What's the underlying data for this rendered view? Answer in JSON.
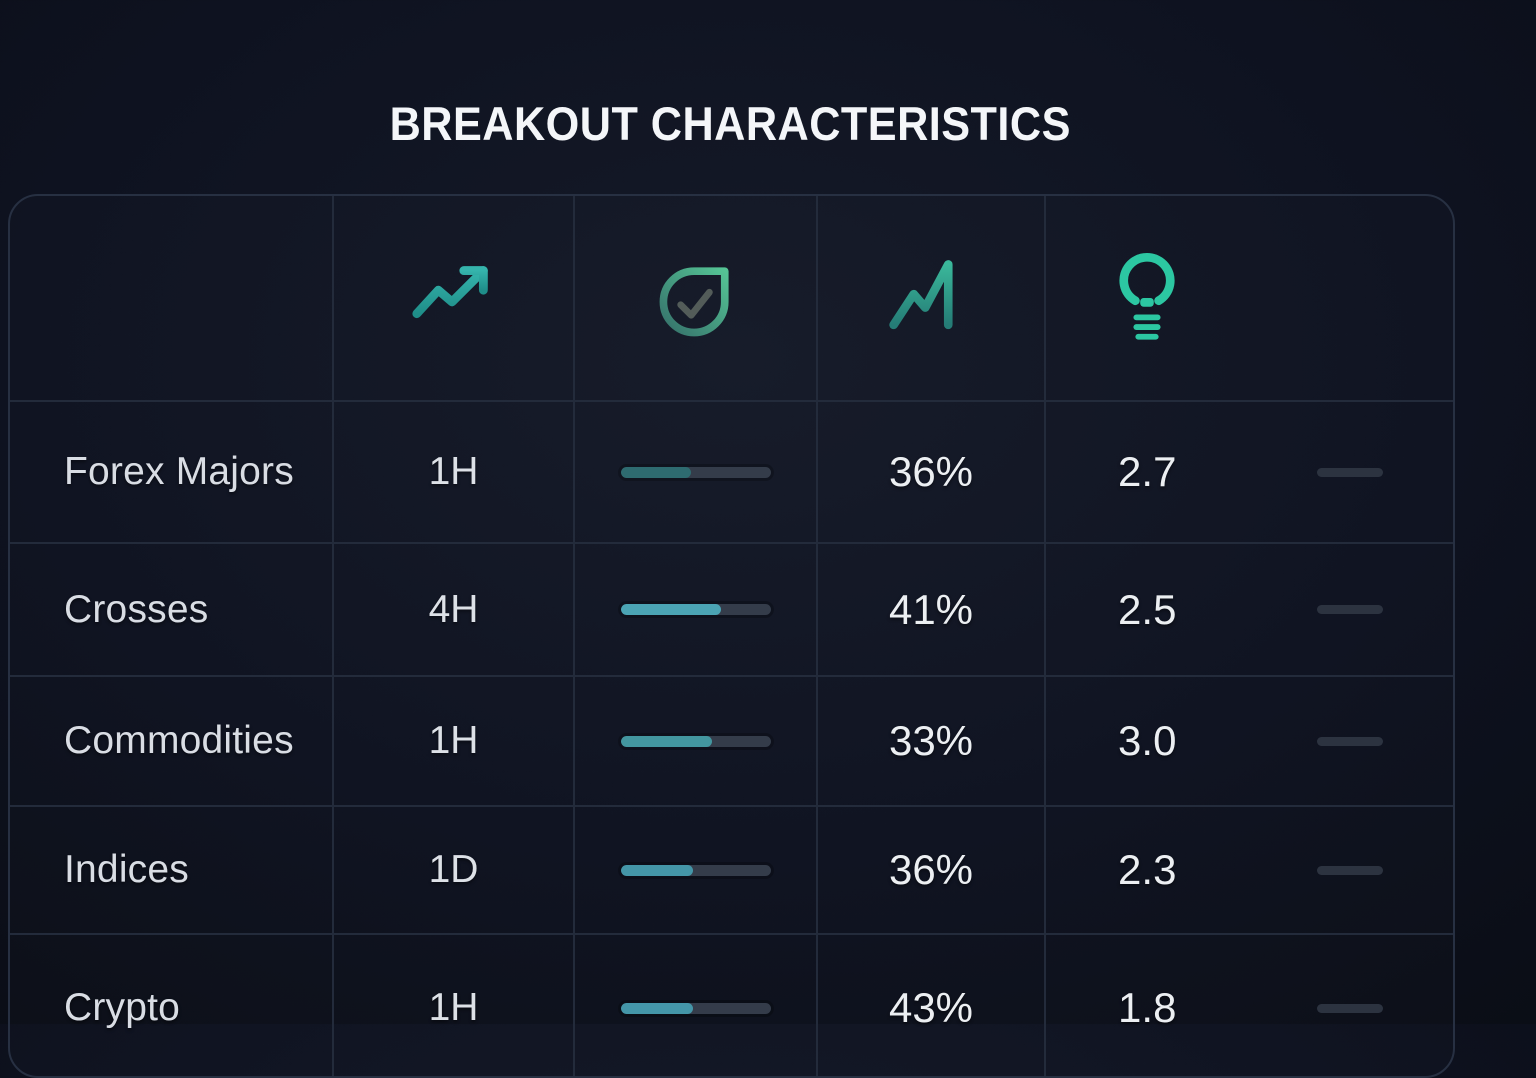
{
  "title": "BREAKOUT CHARACTERISTICS",
  "colors": {
    "accent_teal": "#2ba8a2",
    "accent_green": "#2cc7a2",
    "bar_track": "#343c4a",
    "dash": "#2c3340",
    "grid_line": "#232b3b",
    "background": "#0e1220",
    "title_text": "#f4f6f9"
  },
  "table": {
    "columns": [
      {
        "id": "market",
        "icon": null
      },
      {
        "id": "timeframe",
        "icon": "trend-up-arrow-icon"
      },
      {
        "id": "strength",
        "icon": "shield-check-icon"
      },
      {
        "id": "breakout-rate",
        "icon": "chart-line-icon"
      },
      {
        "id": "ratio",
        "icon": "lightbulb-icon"
      }
    ],
    "rows": [
      {
        "market": "Forex Majors",
        "timeframe": "1H",
        "bar_percent": 47,
        "bar_color": "#2e6b70",
        "percent": "36%",
        "value": "2.7"
      },
      {
        "market": "Crosses",
        "timeframe": "4H",
        "bar_percent": 67,
        "bar_color": "#4ba4b4",
        "percent": "41%",
        "value": "2.5"
      },
      {
        "market": "Commodities",
        "timeframe": "1H",
        "bar_percent": 61,
        "bar_color": "#43969f",
        "percent": "33%",
        "value": "3.0"
      },
      {
        "market": "Indices",
        "timeframe": "1D",
        "bar_percent": 48,
        "bar_color": "#4496a8",
        "percent": "36%",
        "value": "2.3"
      },
      {
        "market": "Crypto",
        "timeframe": "1H",
        "bar_percent": 48,
        "bar_color": "#4496a8",
        "percent": "43%",
        "value": "1.8"
      }
    ]
  },
  "chart_data": {
    "type": "table",
    "title": "BREAKOUT CHARACTERISTICS",
    "columns": [
      "market",
      "timeframe",
      "strength-bar",
      "percent",
      "ratio"
    ],
    "rows": [
      [
        "Forex Majors",
        "1H",
        0.47,
        "36%",
        2.7
      ],
      [
        "Crosses",
        "4H",
        0.67,
        "41%",
        2.5
      ],
      [
        "Commodities",
        "1H",
        0.61,
        "33%",
        3.0
      ],
      [
        "Indices",
        "1D",
        0.48,
        "36%",
        2.3
      ],
      [
        "Crypto",
        "1H",
        0.48,
        "43%",
        1.8
      ]
    ]
  }
}
